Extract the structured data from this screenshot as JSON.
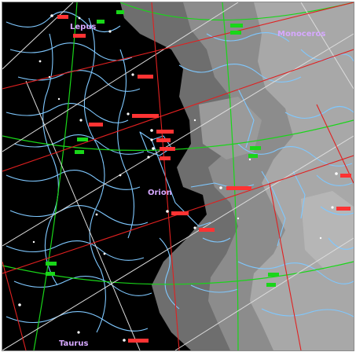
{
  "map": {
    "constellations": [
      {
        "id": "lepus",
        "name": "Lepus"
      },
      {
        "id": "monoceros",
        "name": "Monoceros"
      },
      {
        "id": "orion",
        "name": "Orion"
      },
      {
        "id": "taurus",
        "name": "Taurus"
      }
    ],
    "colors": {
      "background": "#000000",
      "milky_way_dark": "#6e6e6e",
      "milky_way_mid": "#8a8a8a",
      "milky_way_light": "#a9a9a9",
      "constellation_lines": "#7fc8ff",
      "ecliptic": "#e02020",
      "grid_green": "#19d619",
      "grid_white": "#dcdcdc",
      "star_labels": "#ff3333",
      "constellation_labels": "#d6a8ff"
    },
    "layers": [
      "milky-way",
      "constellation-lines",
      "coordinate-grid",
      "stars",
      "labels"
    ]
  }
}
